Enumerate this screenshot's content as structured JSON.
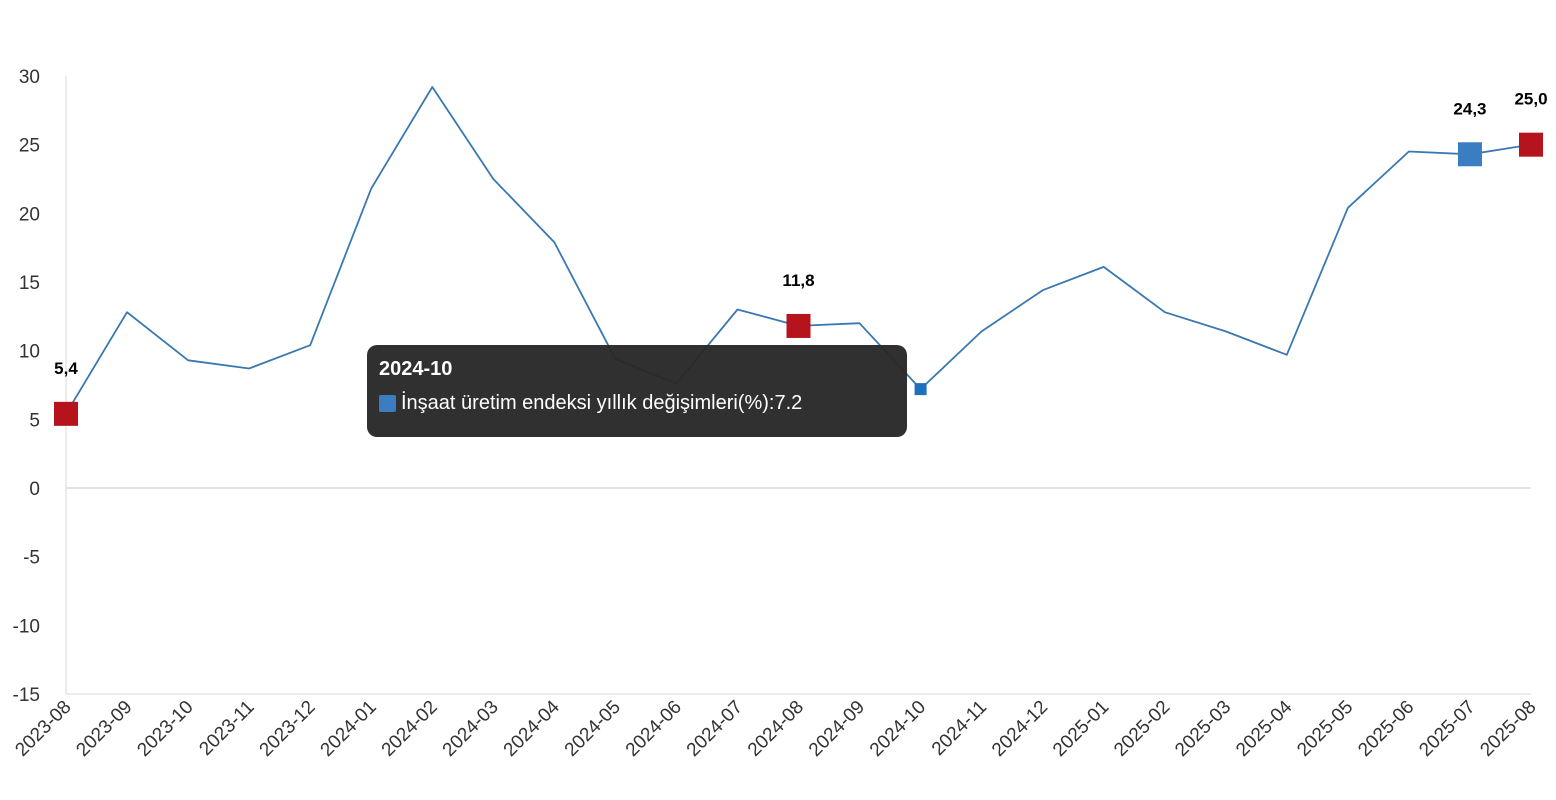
{
  "chart_data": {
    "type": "line",
    "x": [
      "2023-08",
      "2023-09",
      "2023-10",
      "2023-11",
      "2023-12",
      "2024-01",
      "2024-02",
      "2024-03",
      "2024-04",
      "2024-05",
      "2024-06",
      "2024-07",
      "2024-08",
      "2024-09",
      "2024-10",
      "2024-11",
      "2024-12",
      "2025-01",
      "2025-02",
      "2025-03",
      "2025-04",
      "2025-05",
      "2025-06",
      "2025-07",
      "2025-08"
    ],
    "series": [
      {
        "name": "İnşaat üretim endeksi yıllık değişimleri(%)",
        "values": [
          5.4,
          12.8,
          9.3,
          8.7,
          10.4,
          21.8,
          29.2,
          22.5,
          17.9,
          9.4,
          7.6,
          13.0,
          11.8,
          12.0,
          7.2,
          11.4,
          14.4,
          16.1,
          12.8,
          11.4,
          9.7,
          20.4,
          24.5,
          24.3,
          25.0
        ],
        "color": "#3a78b0"
      }
    ],
    "yticks": [
      "30",
      "25",
      "20",
      "15",
      "10",
      "5",
      "0",
      "-5",
      "-10",
      "-15"
    ],
    "ylim": [
      -15,
      30
    ],
    "highlights": [
      {
        "index": 0,
        "label": "5,4",
        "color": "#b5141c"
      },
      {
        "index": 12,
        "label": "11,8",
        "color": "#b5141c"
      },
      {
        "index": 23,
        "label": "24,3",
        "color": "#3a7dc0"
      },
      {
        "index": 24,
        "label": "25,0",
        "color": "#b5141c"
      }
    ],
    "hover_point": {
      "index": 14,
      "color": "#1f6fbf"
    },
    "grid": false,
    "zero_line_color": "#d9d9d9",
    "axis_color": "#d9d9d9"
  },
  "tooltip": {
    "title": "2024-10",
    "series_label": "İnşaat üretim endeksi yıllık değişimleri(%)",
    "separator": ": ",
    "value": "7.2",
    "swatch_color": "#3a7dc0"
  }
}
